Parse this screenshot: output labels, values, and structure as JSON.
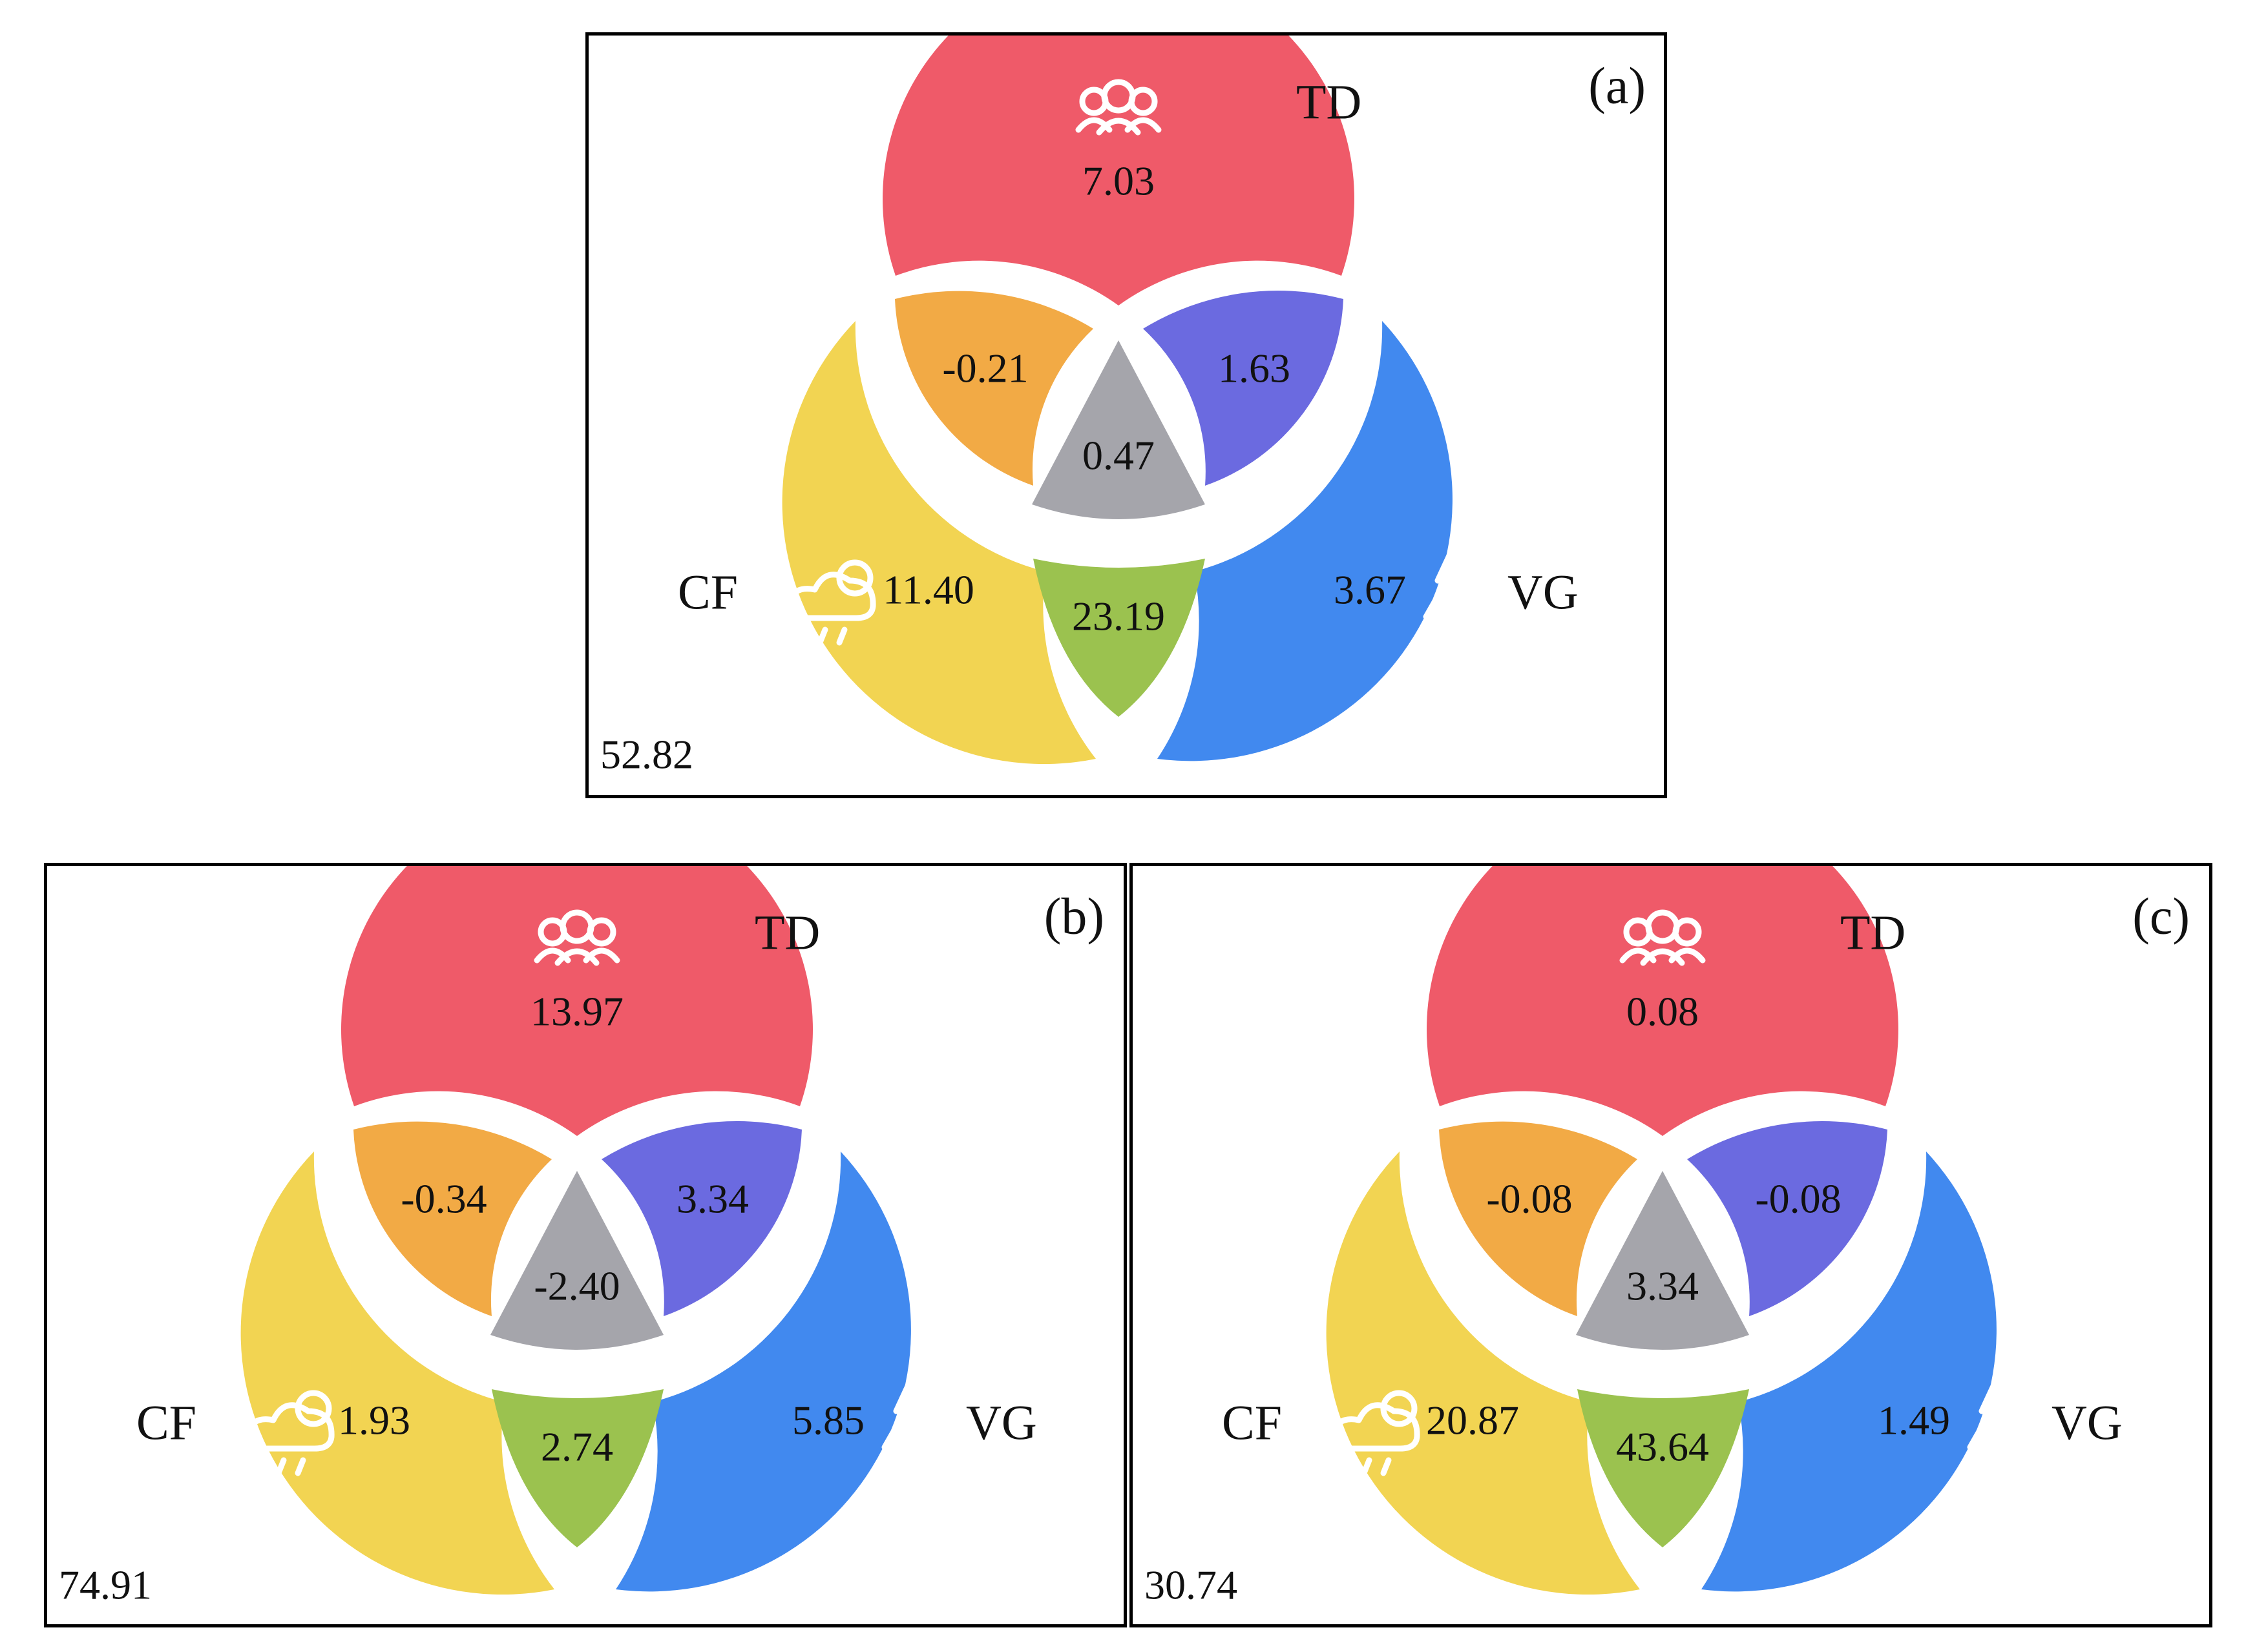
{
  "labels": {
    "td": "TD",
    "cf": "CF",
    "vg": "VG"
  },
  "icons": {
    "td": "people-group-icon",
    "cf": "cloud-rain-sun-icon",
    "vg": "pine-tree-icon"
  },
  "colors": {
    "td_only": "#ef5a69",
    "cf_only": "#f2d452",
    "vg_only": "#4189ef",
    "td_cf": "#f2aa45",
    "td_vg": "#6b6ae0",
    "cf_vg": "#9bc24f",
    "all": "#a5a5ab"
  },
  "panels": [
    {
      "tag": "(a)",
      "residual": "52.82",
      "values": {
        "td_only": "7.03",
        "td_cf": "-0.21",
        "td_vg": "1.63",
        "all": "0.47",
        "cf_only": "11.40",
        "cf_vg": "23.19",
        "vg_only": "3.67"
      }
    },
    {
      "tag": "(b)",
      "residual": "74.91",
      "values": {
        "td_only": "13.97",
        "td_cf": "-0.34",
        "td_vg": "3.34",
        "all": "-2.40",
        "cf_only": "1.93",
        "cf_vg": "2.74",
        "vg_only": "5.85"
      }
    },
    {
      "tag": "(c)",
      "residual": "30.74",
      "values": {
        "td_only": "0.08",
        "td_cf": "-0.08",
        "td_vg": "-0.08",
        "all": "3.34",
        "cf_only": "20.87",
        "cf_vg": "43.64",
        "vg_only": "1.49"
      }
    }
  ]
}
